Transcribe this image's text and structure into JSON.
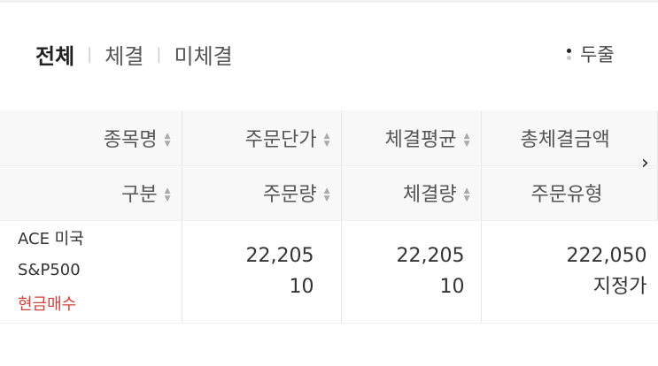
{
  "tabs": [
    {
      "label": "전체",
      "active": true
    },
    {
      "label": "체결"
    },
    {
      "label": "미체결"
    }
  ],
  "view_toggle": {
    "label": "두줄",
    "icon": "two-line-dots-icon"
  },
  "header_row1": [
    "종목명",
    "주문단가",
    "체결평균",
    "총체결금액"
  ],
  "header_row2": [
    "구분",
    "주문량",
    "체결량",
    "주문유형"
  ],
  "rows": [
    {
      "name": "ACE 미국S&P500",
      "type": "현금매수",
      "order_price": "22,205",
      "order_qty": "10",
      "avg_price": "22,205",
      "filled_qty": "10",
      "total_amount": "222,050",
      "order_type": "지정가"
    }
  ],
  "colors": {
    "buy": "#d0413c"
  }
}
